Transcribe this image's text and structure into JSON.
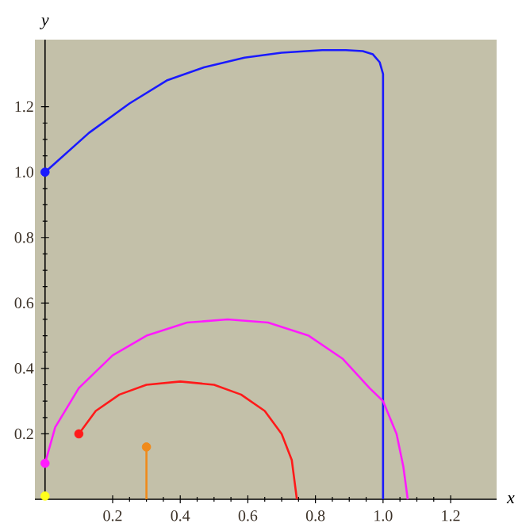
{
  "chart_data": {
    "type": "line",
    "xlabel": "x",
    "ylabel": "y",
    "xlim": [
      -0.03,
      1.336
    ],
    "ylim": [
      0,
      1.405
    ],
    "xticks": [
      0.2,
      0.4,
      0.6,
      0.8,
      {
        "value": 1,
        "label": "1.0"
      },
      1.2
    ],
    "yticks": [
      0.2,
      0.4,
      0.6,
      0.8,
      {
        "value": 1,
        "label": "1.0"
      },
      1.2
    ],
    "series": [
      {
        "marker": "none",
        "color": "#1a1aff",
        "x": [
          0,
          0.13,
          0.25,
          0.36,
          0.47,
          0.59,
          0.7,
          0.82,
          0.89,
          0.94,
          0.97,
          0.99,
          1.0,
          1.0
        ],
        "values": [
          1.0,
          1.12,
          1.21,
          1.28,
          1.32,
          1.35,
          1.365,
          1.373,
          1.373,
          1.37,
          1.36,
          1.336,
          1.3,
          0
        ]
      },
      {
        "marker": "none",
        "color": "#ff1aff",
        "x": [
          0,
          0.03,
          0.1,
          0.2,
          0.3,
          0.42,
          0.54,
          0.66,
          0.78,
          0.88,
          0.96,
          1.0,
          1.04,
          1.06,
          1.073
        ],
        "values": [
          0.11,
          0.22,
          0.34,
          0.44,
          0.5,
          0.54,
          0.55,
          0.54,
          0.5,
          0.43,
          0.34,
          0.3,
          0.2,
          0.1,
          0
        ]
      },
      {
        "marker": "none",
        "color": "#ff1a1a",
        "x": [
          0.1,
          0.15,
          0.22,
          0.3,
          0.4,
          0.5,
          0.58,
          0.65,
          0.7,
          0.73,
          0.745
        ],
        "values": [
          0.2,
          0.27,
          0.32,
          0.35,
          0.36,
          0.35,
          0.32,
          0.27,
          0.2,
          0.12,
          0
        ]
      },
      {
        "marker": "none",
        "color": "#f08a1a",
        "x": [
          0.3,
          0.3
        ],
        "values": [
          0,
          0.16
        ]
      },
      {
        "type": "scatter",
        "marker": "circle",
        "color": "#1a1aff",
        "colors": [
          "#1a1aff",
          "#ff1a1a",
          "#ff1aff",
          "#f08a1a",
          "#ffff1a"
        ],
        "x": [
          0,
          0.1,
          0,
          0.3,
          0
        ],
        "values": [
          1.0,
          0.2,
          0.11,
          0.16,
          0.01
        ]
      }
    ]
  }
}
